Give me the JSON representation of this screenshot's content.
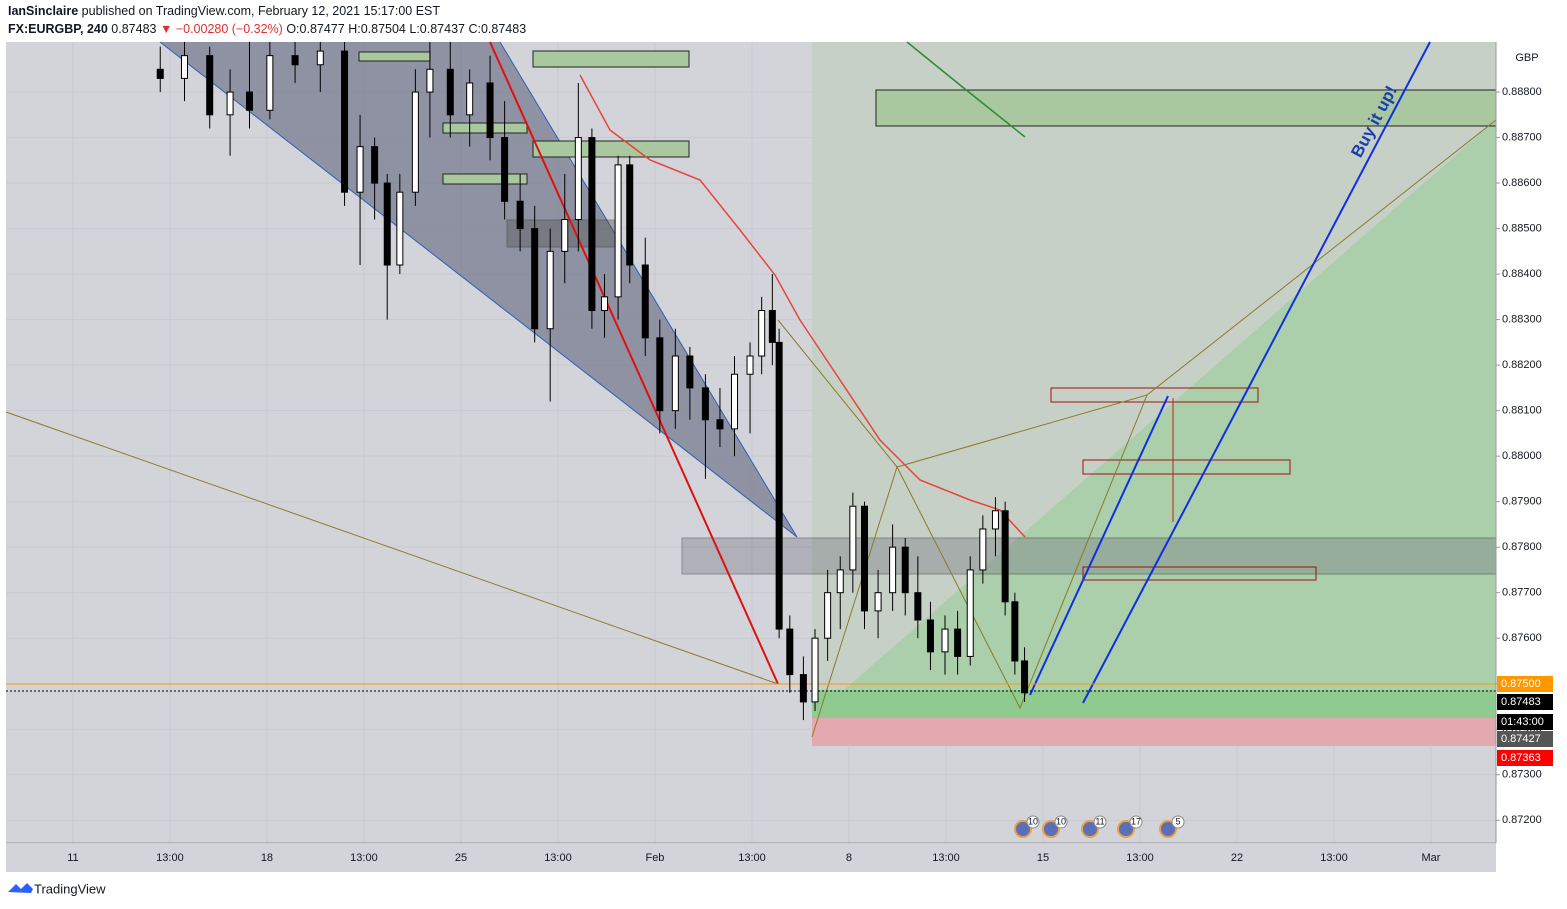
{
  "header": {
    "publisher": "IanSinclaire",
    "published": "published on TradingView.com, February 12, 2021 15:17:00 EST",
    "symbol": "FX:EURGBP, 240",
    "last": "0.87483",
    "change": "▼ −0.00280 (−0.32%)",
    "open": "O:0.87477",
    "high": "H:0.87504",
    "low": "L:0.87437",
    "close": "C:0.87483"
  },
  "chart_data": {
    "type": "candlestick",
    "currency": "GBP",
    "annotation": "Buy it up!",
    "price_labels": [
      {
        "label": "0.87500",
        "color": "#ff9800"
      },
      {
        "label": "0.87483",
        "color": "#000000"
      },
      {
        "label": "01:43:00",
        "color": "#000000"
      },
      {
        "label": "0.87427",
        "color": "#555555"
      },
      {
        "label": "0.87363",
        "color": "#ff0000"
      }
    ],
    "events": [
      "10",
      "10",
      "11",
      "17",
      "5"
    ],
    "xlim": [
      -0.69,
      14.67
    ],
    "ylim": [
      0.8715,
      0.8891
    ],
    "xticks": [
      {
        "value": 0,
        "label": "11"
      },
      {
        "value": 1,
        "label": "13:00"
      },
      {
        "value": 2,
        "label": "18"
      },
      {
        "value": 3,
        "label": "13:00"
      },
      {
        "value": 4,
        "label": "25"
      },
      {
        "value": 5,
        "label": "13:00"
      },
      {
        "value": 6,
        "label": "Feb"
      },
      {
        "value": 7,
        "label": "13:00"
      },
      {
        "value": 8,
        "label": "8"
      },
      {
        "value": 9,
        "label": "13:00"
      },
      {
        "value": 10,
        "label": "15"
      },
      {
        "value": 11,
        "label": "13:00"
      },
      {
        "value": 12,
        "label": "22"
      },
      {
        "value": 13,
        "label": "13:00"
      },
      {
        "value": 14,
        "label": "Mar"
      }
    ],
    "yticks": [
      {
        "value": 0.872,
        "label": "0.87200"
      },
      {
        "value": 0.873,
        "label": "0.87300"
      },
      {
        "value": 0.874,
        "label": "0.87400"
      },
      {
        "value": 0.875,
        "label": "0.87500"
      },
      {
        "value": 0.876,
        "label": "0.87600"
      },
      {
        "value": 0.877,
        "label": "0.87700"
      },
      {
        "value": 0.878,
        "label": "0.87800"
      },
      {
        "value": 0.879,
        "label": "0.87900"
      },
      {
        "value": 0.88,
        "label": "0.88000"
      },
      {
        "value": 0.881,
        "label": "0.88100"
      },
      {
        "value": 0.882,
        "label": "0.88200"
      },
      {
        "value": 0.883,
        "label": "0.88300"
      },
      {
        "value": 0.884,
        "label": "0.88400"
      },
      {
        "value": 0.885,
        "label": "0.88500"
      },
      {
        "value": 0.886,
        "label": "0.88600"
      },
      {
        "value": 0.887,
        "label": "0.88700"
      },
      {
        "value": 0.888,
        "label": "0.88800"
      }
    ],
    "grid": true,
    "up_color": "#ffffff",
    "down_color": "#000000",
    "x": [
      0.9,
      1.15,
      1.41,
      1.62,
      1.82,
      2.03,
      2.29,
      2.55,
      2.8,
      2.96,
      3.11,
      3.24,
      3.37,
      3.53,
      3.68,
      3.89,
      4.09,
      4.3,
      4.45,
      4.61,
      4.76,
      4.92,
      5.07,
      5.21,
      5.35,
      5.48,
      5.62,
      5.74,
      5.9,
      6.05,
      6.21,
      6.36,
      6.52,
      6.67,
      6.82,
      6.98,
      7.1,
      7.21,
      7.28,
      7.39,
      7.53,
      7.65,
      7.78,
      7.91,
      8.04,
      8.16,
      8.3,
      8.45,
      8.58,
      8.71,
      8.84,
      8.99,
      9.12,
      9.25,
      9.38,
      9.51,
      9.61,
      9.71,
      9.81
    ],
    "open": [
      0.8885,
      0.8883,
      0.8888,
      0.8875,
      0.888,
      0.8876,
      0.8888,
      0.8886,
      0.8889,
      0.8858,
      0.8868,
      0.886,
      0.8842,
      0.8858,
      0.888,
      0.8885,
      0.8875,
      0.8882,
      0.887,
      0.8856,
      0.885,
      0.8828,
      0.8845,
      0.8852,
      0.887,
      0.8832,
      0.8835,
      0.8864,
      0.8842,
      0.8826,
      0.881,
      0.8822,
      0.8815,
      0.8808,
      0.8806,
      0.8818,
      0.8822,
      0.8832,
      0.8825,
      0.8762,
      0.8752,
      0.8746,
      0.876,
      0.877,
      0.8775,
      0.8789,
      0.8766,
      0.877,
      0.878,
      0.877,
      0.8764,
      0.8757,
      0.8762,
      0.8756,
      0.8775,
      0.8784,
      0.8788,
      0.8768,
      0.8755
    ],
    "high": [
      0.889,
      0.8891,
      0.889,
      0.8885,
      0.8891,
      0.8891,
      0.8891,
      0.8891,
      0.8891,
      0.8875,
      0.887,
      0.8862,
      0.8862,
      0.8885,
      0.8891,
      0.8891,
      0.8885,
      0.8888,
      0.8878,
      0.8862,
      0.8855,
      0.885,
      0.8862,
      0.8882,
      0.8872,
      0.884,
      0.8866,
      0.8866,
      0.8848,
      0.883,
      0.8828,
      0.8824,
      0.8818,
      0.8815,
      0.8822,
      0.8825,
      0.8835,
      0.884,
      0.8828,
      0.8765,
      0.8756,
      0.8762,
      0.8775,
      0.8778,
      0.8792,
      0.879,
      0.8775,
      0.8785,
      0.8782,
      0.8778,
      0.8768,
      0.8765,
      0.8766,
      0.8778,
      0.8787,
      0.8791,
      0.879,
      0.877,
      0.8758
    ],
    "low": [
      0.888,
      0.8878,
      0.8872,
      0.8866,
      0.8872,
      0.8874,
      0.8882,
      0.888,
      0.8855,
      0.8842,
      0.8852,
      0.883,
      0.884,
      0.8855,
      0.887,
      0.887,
      0.8868,
      0.8865,
      0.8852,
      0.8845,
      0.8825,
      0.8812,
      0.8838,
      0.8845,
      0.8828,
      0.8826,
      0.883,
      0.8838,
      0.8822,
      0.8805,
      0.8806,
      0.8808,
      0.8795,
      0.8802,
      0.88,
      0.8805,
      0.8818,
      0.882,
      0.876,
      0.8748,
      0.8742,
      0.8744,
      0.8755,
      0.8762,
      0.877,
      0.8762,
      0.876,
      0.8766,
      0.8765,
      0.876,
      0.8753,
      0.8752,
      0.8752,
      0.8754,
      0.8772,
      0.8778,
      0.8765,
      0.8752,
      0.8746
    ],
    "close": [
      0.8883,
      0.8888,
      0.8875,
      0.888,
      0.8876,
      0.8888,
      0.8886,
      0.8889,
      0.8858,
      0.8868,
      0.886,
      0.8842,
      0.8858,
      0.888,
      0.8885,
      0.8875,
      0.8882,
      0.887,
      0.8856,
      0.885,
      0.8828,
      0.8845,
      0.8852,
      0.887,
      0.8832,
      0.8835,
      0.8864,
      0.8842,
      0.8826,
      0.881,
      0.8822,
      0.8815,
      0.8808,
      0.8806,
      0.8818,
      0.8822,
      0.8832,
      0.8825,
      0.8762,
      0.8752,
      0.8746,
      0.876,
      0.877,
      0.8775,
      0.8789,
      0.8766,
      0.877,
      0.878,
      0.877,
      0.8764,
      0.8757,
      0.8762,
      0.8756,
      0.8775,
      0.8784,
      0.8788,
      0.8768,
      0.8755,
      0.8748
    ]
  },
  "footer": {
    "brand": "TradingView"
  }
}
